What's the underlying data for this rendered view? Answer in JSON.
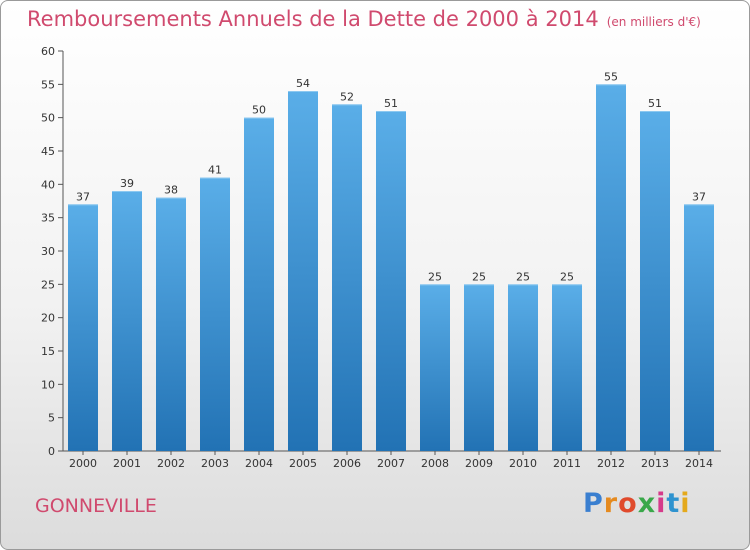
{
  "chart_data": {
    "type": "bar",
    "title": "Remboursements Annuels de la Dette de 2000 à 2014",
    "unit_note": "(en milliers d'€)",
    "categories": [
      "2000",
      "2001",
      "2002",
      "2003",
      "2004",
      "2005",
      "2006",
      "2007",
      "2008",
      "2009",
      "2010",
      "2011",
      "2012",
      "2013",
      "2014"
    ],
    "values": [
      37,
      39,
      38,
      41,
      50,
      54,
      52,
      51,
      25,
      25,
      25,
      25,
      55,
      51,
      37
    ],
    "ylim": [
      0,
      60
    ],
    "yticks": [
      0,
      5,
      10,
      15,
      20,
      25,
      30,
      35,
      40,
      45,
      50,
      55,
      60
    ],
    "xlabel": "",
    "ylabel": "",
    "grid": false,
    "colors": {
      "bar_top": "#5aaee8",
      "bar_bottom": "#2272b4",
      "title": "#d04a6e"
    }
  },
  "place_name": "GONNEVILLE",
  "logo": {
    "letters": [
      "P",
      "r",
      "o",
      "x",
      "i",
      "t",
      "i"
    ],
    "colors": [
      "#3a7fd0",
      "#e58a1f",
      "#e04a2c",
      "#3aa84a",
      "#d63a8a",
      "#2f93cf",
      "#e4a91c"
    ]
  }
}
